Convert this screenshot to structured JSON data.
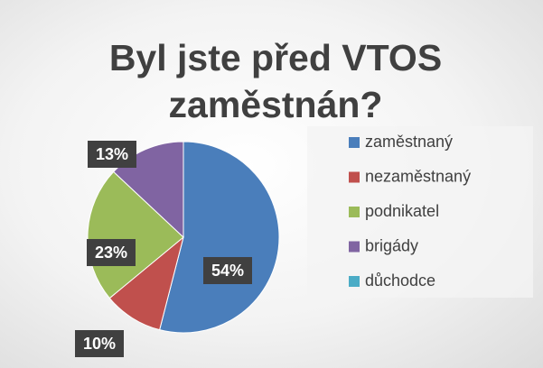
{
  "chart_data": {
    "type": "pie",
    "title": "Byl jste před VTOS zaměstnán?",
    "categories": [
      "zaměstnaný",
      "nezaměstnaný",
      "podnikatel",
      "brigády",
      "důchodce"
    ],
    "values": [
      54,
      10,
      23,
      13,
      0
    ],
    "value_labels": [
      "54%",
      "10%",
      "23%",
      "13%",
      null
    ],
    "colors": [
      "#4a7ebb",
      "#c0504d",
      "#9bbb59",
      "#8064a2",
      "#4bacc6"
    ],
    "legend": "right"
  }
}
